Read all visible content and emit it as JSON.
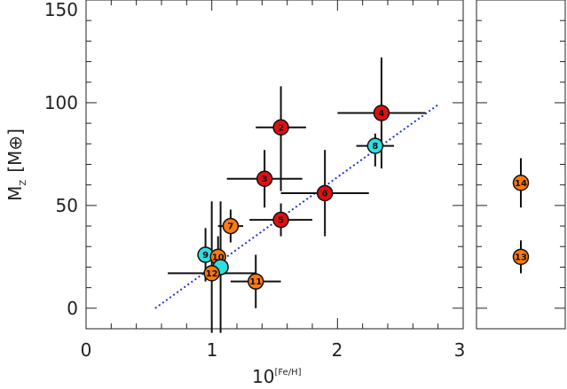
{
  "chart_data": {
    "type": "scatter",
    "xlabel_base": "10",
    "xlabel_exponent": "[Fe/H]",
    "ylabel_main": "M",
    "ylabel_sub": "Z",
    "ylabel_unit": "[M⊕]",
    "xlim": [
      0,
      3
    ],
    "ylim": [
      -10,
      150
    ],
    "x_ticks": [
      "0",
      "1",
      "2",
      "3"
    ],
    "y_ticks": [
      "0",
      "50",
      "100",
      "150"
    ],
    "colors": {
      "red": "#e01010",
      "orange": "#ff7a10",
      "cyan": "#30dde0",
      "fit_line": "#2030e0"
    },
    "fit_line": {
      "x": [
        0.55,
        2.8
      ],
      "y": [
        0,
        99
      ]
    },
    "points": [
      {
        "label": "2",
        "x": 1.55,
        "y": 88,
        "xerr": [
          0.2,
          0.2
        ],
        "yerr": [
          31,
          20
        ],
        "color": "red"
      },
      {
        "label": "3",
        "x": 1.42,
        "y": 63,
        "xerr": [
          0.3,
          0.3
        ],
        "yerr": [
          14,
          14
        ],
        "color": "red"
      },
      {
        "label": "4",
        "x": 2.35,
        "y": 95,
        "xerr": [
          0.35,
          0.35
        ],
        "yerr": [
          27,
          27
        ],
        "color": "red"
      },
      {
        "label": "5",
        "x": 1.55,
        "y": 43,
        "xerr": [
          0.25,
          0.25
        ],
        "yerr": [
          8,
          8
        ],
        "color": "red"
      },
      {
        "label": "6",
        "x": 1.9,
        "y": 56,
        "xerr": [
          0.35,
          0.35
        ],
        "yerr": [
          21,
          21
        ],
        "color": "red"
      },
      {
        "label": "7",
        "x": 1.15,
        "y": 40,
        "xerr": [
          0.1,
          0.1
        ],
        "yerr": [
          8,
          8
        ],
        "color": "orange"
      },
      {
        "label": "8",
        "x": 2.3,
        "y": 79,
        "xerr": [
          0.15,
          0.15
        ],
        "yerr": [
          10,
          6
        ],
        "color": "cyan"
      },
      {
        "label": "9",
        "x": 0.95,
        "y": 26,
        "xerr": [
          0.05,
          0.05
        ],
        "yerr": [
          13,
          13
        ],
        "color": "cyan"
      },
      {
        "label": "10",
        "x": 1.05,
        "y": 25,
        "xerr": [
          0.05,
          0.05
        ],
        "yerr": [
          10,
          10
        ],
        "color": "orange"
      },
      {
        "label": "",
        "x": 1.07,
        "y": 20,
        "xerr": [
          0.05,
          0.05
        ],
        "yerr": [
          32,
          32
        ],
        "color": "cyan"
      },
      {
        "label": "12",
        "x": 1.0,
        "y": 17,
        "xerr": [
          0.35,
          0.35
        ],
        "yerr": [
          29,
          35
        ],
        "color": "orange"
      },
      {
        "label": "11",
        "x": 1.35,
        "y": 13,
        "xerr": [
          0.2,
          0.2
        ],
        "yerr": [
          13,
          13
        ],
        "color": "orange"
      }
    ],
    "side_panel": {
      "points": [
        {
          "label": "14",
          "y": 61,
          "yerr": [
            12,
            12
          ],
          "color": "orange"
        },
        {
          "label": "13",
          "y": 25,
          "yerr": [
            8,
            8
          ],
          "color": "orange"
        }
      ]
    }
  }
}
